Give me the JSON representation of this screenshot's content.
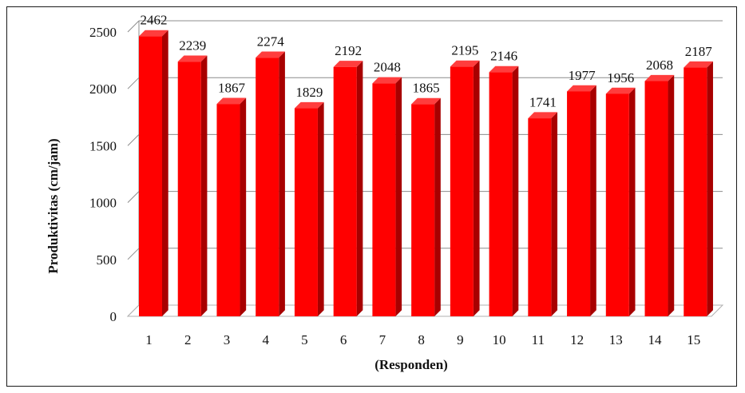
{
  "chart_data": {
    "type": "bar",
    "categories": [
      "1",
      "2",
      "3",
      "4",
      "5",
      "6",
      "7",
      "8",
      "9",
      "10",
      "11",
      "12",
      "13",
      "14",
      "15"
    ],
    "values": [
      2462,
      2239,
      1867,
      2274,
      1829,
      2192,
      2048,
      1865,
      2195,
      2146,
      1741,
      1977,
      1956,
      2068,
      2187
    ],
    "data_labels": [
      "2462",
      "2239",
      "1867",
      "2274",
      "1829",
      "2192",
      "2048",
      "1865",
      "2195",
      "2146",
      "1741",
      "1977",
      "1956",
      "2068",
      "2187"
    ],
    "y_ticks": [
      "0",
      "500",
      "1000",
      "1500",
      "2000",
      "2500"
    ],
    "ylim": [
      0,
      2500
    ],
    "xlabel": "(Responden)",
    "ylabel": "Produktivitas  (cm/jam)",
    "grid": true,
    "legend": "none",
    "colors": {
      "bar_front": "#ff0000",
      "bar_side": "#a80000",
      "bar_top": "#ff3d3d",
      "grid": "#8c8c8c",
      "floor": "#b0b0b0"
    }
  }
}
